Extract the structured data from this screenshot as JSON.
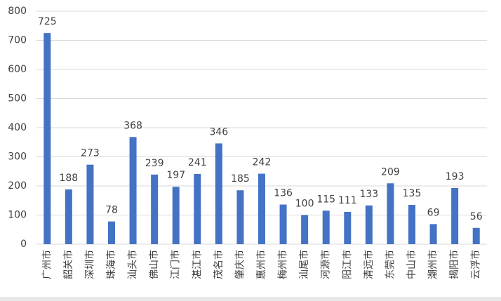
{
  "chart_data": {
    "type": "bar",
    "categories": [
      "广州市",
      "韶关市",
      "深圳市",
      "珠海市",
      "汕头市",
      "佛山市",
      "江门市",
      "湛江市",
      "茂名市",
      "肇庆市",
      "惠州市",
      "梅州市",
      "汕尾市",
      "河源市",
      "阳江市",
      "清远市",
      "东莞市",
      "中山市",
      "潮州市",
      "揭阳市",
      "云浮市"
    ],
    "values": [
      725,
      188,
      273,
      78,
      368,
      239,
      197,
      241,
      346,
      185,
      242,
      136,
      100,
      115,
      111,
      133,
      209,
      135,
      69,
      193,
      56
    ],
    "color": "#4472c4",
    "ylim": [
      0,
      800
    ],
    "yticks": [
      0,
      100,
      200,
      300,
      400,
      500,
      600,
      700,
      800
    ],
    "grid": true
  }
}
